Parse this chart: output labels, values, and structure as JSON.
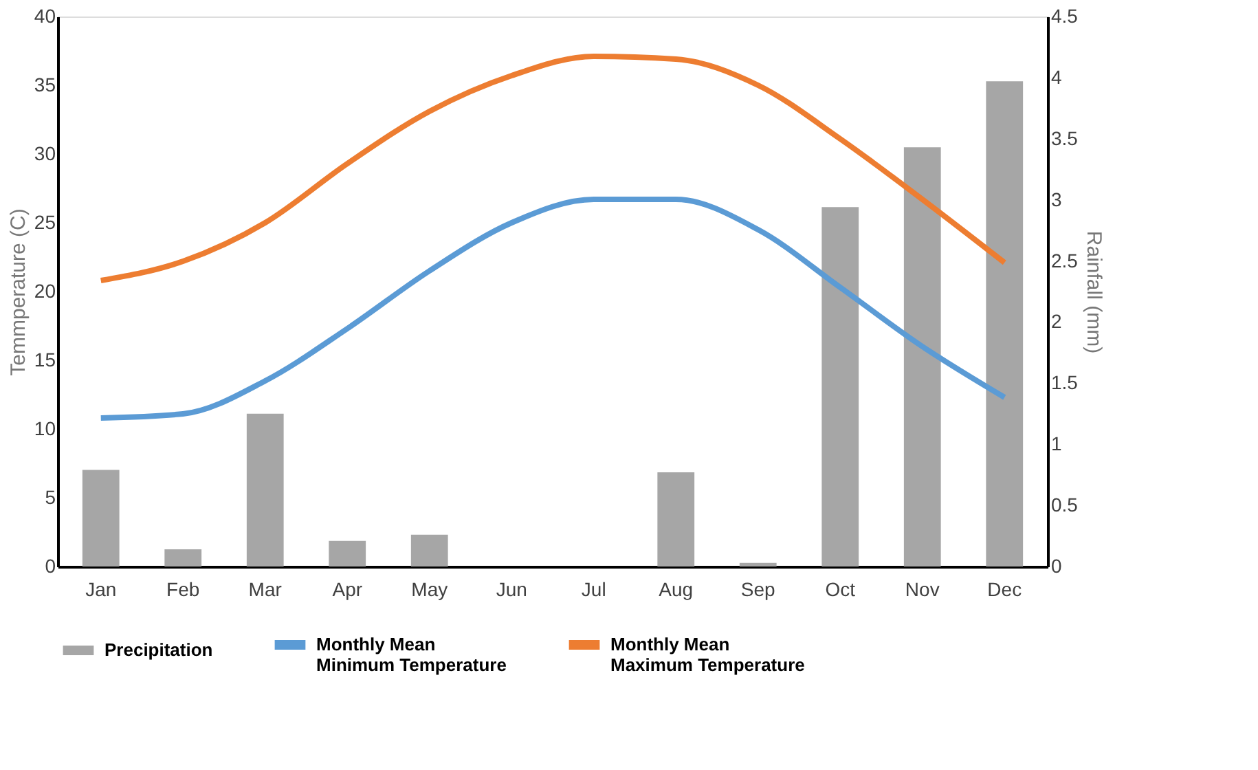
{
  "chart_data": {
    "type": "line",
    "categories": [
      "Jan",
      "Feb",
      "Mar",
      "Apr",
      "May",
      "Jun",
      "Jul",
      "Aug",
      "Sep",
      "Oct",
      "Nov",
      "Dec"
    ],
    "ylabel": "Temmperature (C)",
    "y2label": "Rainfall (mm)",
    "ylim": [
      0,
      40
    ],
    "yticks": [
      0,
      5,
      10,
      15,
      20,
      25,
      30,
      35,
      40
    ],
    "y2lim": [
      0,
      4.5
    ],
    "y2ticks": [
      0,
      0.5,
      1,
      1.5,
      2,
      2.5,
      3,
      3.5,
      4,
      4.5
    ],
    "grid": false,
    "legend": "bottom",
    "series": [
      {
        "name": "Precipitation",
        "type": "bar",
        "axis": "y2",
        "color": "#a6a6a6",
        "values": [
          0.79,
          0.14,
          1.25,
          0.21,
          0.26,
          0,
          0,
          0.77,
          0.03,
          2.94,
          3.43,
          3.97
        ]
      },
      {
        "name": "Monthly Mean Minimum Temperature",
        "color": "#5b9bd5",
        "values": [
          10.8,
          11.1,
          13.5,
          17.3,
          21.5,
          25,
          26.7,
          26.7,
          24.5,
          20.3,
          16,
          12.3
        ]
      },
      {
        "name": "Monthly Mean Maximum Temperature",
        "color": "#ed7d31",
        "values": [
          20.8,
          22.2,
          25,
          29.3,
          33.1,
          35.7,
          37.1,
          36.9,
          35,
          31.1,
          26.7,
          22.1
        ]
      }
    ]
  }
}
